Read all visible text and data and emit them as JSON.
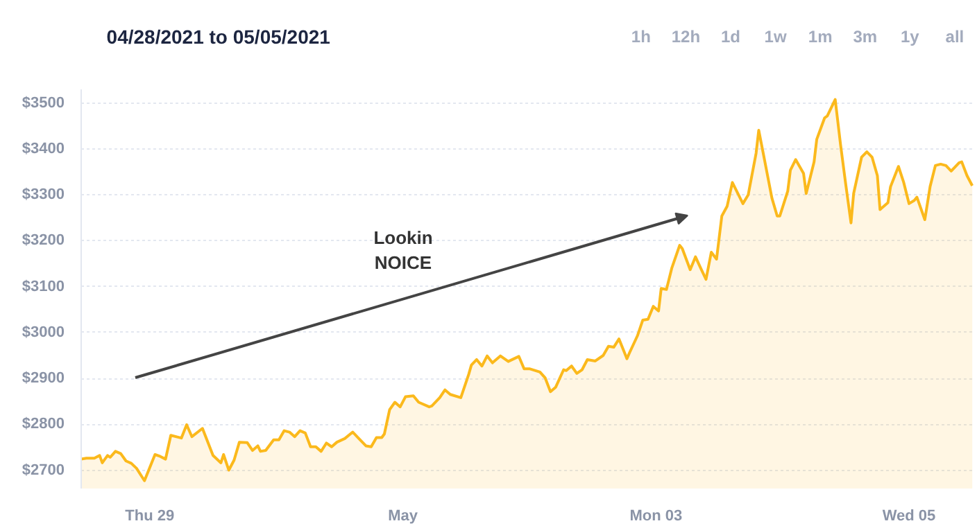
{
  "chart_data": {
    "type": "area",
    "title": "04/28/2021 to 05/05/2021",
    "annotations": [
      "Lookin\nNOICE",
      "1h",
      "12h",
      "1d",
      "1w",
      "1m",
      "3m",
      "1y",
      "all"
    ],
    "x": [
      "2021-04-28T11:00",
      "2021-04-28T12:00",
      "2021-04-28T13:30",
      "2021-04-28T14:30",
      "2021-04-28T15:00",
      "2021-04-28T16:00",
      "2021-04-28T16:30",
      "2021-04-28T17:30",
      "2021-04-28T18:30",
      "2021-04-28T19:30",
      "2021-04-28T20:30",
      "2021-04-28T21:30",
      "2021-04-28T23:00",
      "2021-04-29T01:00",
      "2021-04-29T02:00",
      "2021-04-29T03:00",
      "2021-04-29T04:00",
      "2021-04-29T06:00",
      "2021-04-29T07:00",
      "2021-04-29T08:00",
      "2021-04-29T10:00",
      "2021-04-29T12:00",
      "2021-04-29T13:30",
      "2021-04-29T14:00",
      "2021-04-29T15:00",
      "2021-04-29T16:00",
      "2021-04-29T17:00",
      "2021-04-29T18:30",
      "2021-04-29T19:30",
      "2021-04-29T20:30",
      "2021-04-29T21:00",
      "2021-04-29T22:00",
      "2021-04-29T23:30",
      "2021-04-30T00:30",
      "2021-04-30T01:30",
      "2021-04-30T02:30",
      "2021-04-30T03:30",
      "2021-04-30T04:30",
      "2021-04-30T05:30",
      "2021-04-30T06:30",
      "2021-04-30T07:30",
      "2021-04-30T08:30",
      "2021-04-30T09:30",
      "2021-04-30T10:30",
      "2021-04-30T11:30",
      "2021-04-30T13:00",
      "2021-04-30T14:30",
      "2021-04-30T15:30",
      "2021-04-30T17:00",
      "2021-04-30T18:00",
      "2021-04-30T19:00",
      "2021-04-30T20:00",
      "2021-04-30T20:30",
      "2021-04-30T21:30",
      "2021-04-30T22:30",
      "2021-04-30T23:30",
      "2021-05-01T00:30",
      "2021-05-01T02:00",
      "2021-05-01T03:00",
      "2021-05-01T05:00",
      "2021-05-01T05:30",
      "2021-05-01T07:00",
      "2021-05-01T08:00",
      "2021-05-01T09:00",
      "2021-05-01T11:00",
      "2021-05-01T12:30",
      "2021-05-01T13:00",
      "2021-05-01T14:00",
      "2021-05-01T15:00",
      "2021-05-01T16:00",
      "2021-05-01T17:00",
      "2021-05-01T18:30",
      "2021-05-01T20:00",
      "2021-05-01T22:00",
      "2021-05-01T23:00",
      "2021-05-02T00:00",
      "2021-05-02T02:00",
      "2021-05-02T03:00",
      "2021-05-02T04:00",
      "2021-05-02T05:00",
      "2021-05-02T06:30",
      "2021-05-02T07:00",
      "2021-05-02T08:00",
      "2021-05-02T09:00",
      "2021-05-02T10:00",
      "2021-05-02T11:00",
      "2021-05-02T12:30",
      "2021-05-02T14:00",
      "2021-05-02T15:00",
      "2021-05-02T16:00",
      "2021-05-02T17:00",
      "2021-05-02T18:30",
      "2021-05-02T19:00",
      "2021-05-02T20:30",
      "2021-05-02T21:30",
      "2021-05-02T22:30",
      "2021-05-02T23:30",
      "2021-05-03T00:30",
      "2021-05-03T01:00",
      "2021-05-03T02:00",
      "2021-05-03T03:00",
      "2021-05-03T04:30",
      "2021-05-03T05:00",
      "2021-05-03T06:30",
      "2021-05-03T07:30",
      "2021-05-03T08:30",
      "2021-05-03T09:30",
      "2021-05-03T10:30",
      "2021-05-03T11:30",
      "2021-05-03T12:30",
      "2021-05-03T13:30",
      "2021-05-03T14:30",
      "2021-05-03T15:30",
      "2021-05-03T16:30",
      "2021-05-03T17:30",
      "2021-05-03T19:00",
      "2021-05-03T19:30",
      "2021-05-03T20:30",
      "2021-05-03T22:00",
      "2021-05-03T23:00",
      "2021-05-03T23:30",
      "2021-05-04T01:00",
      "2021-05-04T01:30",
      "2021-05-04T02:30",
      "2021-05-04T04:00",
      "2021-05-04T04:30",
      "2021-05-04T06:00",
      "2021-05-04T06:30",
      "2021-05-04T08:00",
      "2021-05-04T08:30",
      "2021-05-04T10:00",
      "2021-05-04T11:00",
      "2021-05-04T12:00",
      "2021-05-04T13:00",
      "2021-05-04T13:30",
      "2021-05-04T15:00",
      "2021-05-04T16:00",
      "2021-05-04T17:00",
      "2021-05-04T18:00",
      "2021-05-04T18:30",
      "2021-05-04T20:00",
      "2021-05-04T20:30",
      "2021-05-04T22:00",
      "2021-05-04T23:00",
      "2021-05-05T00:00",
      "2021-05-05T01:00",
      "2021-05-05T01:30",
      "2021-05-05T03:00",
      "2021-05-05T04:00",
      "2021-05-05T05:00",
      "2021-05-05T06:00",
      "2021-05-05T07:00",
      "2021-05-05T08:00",
      "2021-05-05T09:30",
      "2021-05-05T10:00",
      "2021-05-05T11:00",
      "2021-05-05T12:00"
    ],
    "series": [
      {
        "color": "#fbb91c",
        "values": [
          2724,
          2726,
          2726,
          2732,
          2716,
          2732,
          2728,
          2741,
          2736,
          2720,
          2715,
          2704,
          2677,
          2734,
          2730,
          2724,
          2776,
          2770,
          2799,
          2773,
          2791,
          2732,
          2716,
          2734,
          2700,
          2722,
          2761,
          2760,
          2743,
          2753,
          2741,
          2743,
          2766,
          2766,
          2786,
          2783,
          2773,
          2786,
          2781,
          2751,
          2751,
          2741,
          2759,
          2751,
          2761,
          2769,
          2783,
          2771,
          2753,
          2751,
          2771,
          2771,
          2779,
          2832,
          2848,
          2838,
          2860,
          2862,
          2848,
          2838,
          2840,
          2858,
          2875,
          2865,
          2858,
          2909,
          2929,
          2941,
          2927,
          2949,
          2934,
          2949,
          2937,
          2948,
          2921,
          2921,
          2914,
          2901,
          2871,
          2881,
          2919,
          2917,
          2927,
          2911,
          2919,
          2941,
          2938,
          2950,
          2970,
          2968,
          2986,
          2943,
          2956,
          2993,
          3027,
          3029,
          3057,
          3047,
          3096,
          3094,
          3140,
          3190,
          3183,
          3137,
          3165,
          3140,
          3116,
          3175,
          3160,
          3254,
          3275,
          3327,
          3304,
          3281,
          3300,
          3391,
          3441,
          3382,
          3293,
          3254,
          3254,
          3308,
          3354,
          3377,
          3347,
          3303,
          3372,
          3421,
          3468,
          3472,
          3508,
          3411,
          3323,
          3239,
          3303,
          3382,
          3394,
          3382,
          3342,
          3268,
          3283,
          3318,
          3362,
          3327,
          3281,
          3288,
          3295,
          3246,
          3318,
          3364,
          3367,
          3364,
          3352,
          3370,
          3372,
          3342,
          3320
        ]
      }
    ],
    "xlim": [
      "2021-04-28T11:00",
      "2021-05-05T12:30"
    ],
    "xticks": [
      {
        "value": "2021-04-29",
        "label": "Thu 29"
      },
      {
        "value": "2021-05-01",
        "label": "May"
      },
      {
        "value": "2021-05-03",
        "label": "Mon 03"
      },
      {
        "value": "2021-05-05",
        "label": "Wed 05"
      }
    ],
    "ylim": [
      2660,
      3530
    ],
    "yticks": [
      {
        "value": 2700,
        "label": "$2700"
      },
      {
        "value": 2800,
        "label": "$2800"
      },
      {
        "value": 2900,
        "label": "$2900"
      },
      {
        "value": 3000,
        "label": "$3000"
      },
      {
        "value": 3100,
        "label": "$3100"
      },
      {
        "value": 3200,
        "label": "$3200"
      },
      {
        "value": 3300,
        "label": "$3300"
      },
      {
        "value": 3400,
        "label": "$3400"
      },
      {
        "value": 3500,
        "label": "$3500"
      }
    ],
    "grid": "y"
  }
}
